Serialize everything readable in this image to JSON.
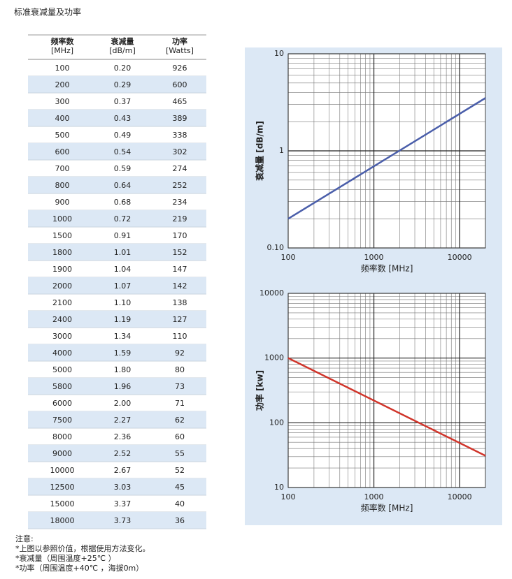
{
  "title": "标准衰减量及功率",
  "table": {
    "headers": [
      [
        "频率数",
        "[MHz]"
      ],
      [
        "衰减量",
        "[dB/m]"
      ],
      [
        "功率",
        "[Watts]"
      ]
    ],
    "rows": [
      [
        "100",
        "0.20",
        "926"
      ],
      [
        "200",
        "0.29",
        "600"
      ],
      [
        "300",
        "0.37",
        "465"
      ],
      [
        "400",
        "0.43",
        "389"
      ],
      [
        "500",
        "0.49",
        "338"
      ],
      [
        "600",
        "0.54",
        "302"
      ],
      [
        "700",
        "0.59",
        "274"
      ],
      [
        "800",
        "0.64",
        "252"
      ],
      [
        "900",
        "0.68",
        "234"
      ],
      [
        "1000",
        "0.72",
        "219"
      ],
      [
        "1500",
        "0.91",
        "170"
      ],
      [
        "1800",
        "1.01",
        "152"
      ],
      [
        "1900",
        "1.04",
        "147"
      ],
      [
        "2000",
        "1.07",
        "142"
      ],
      [
        "2100",
        "1.10",
        "138"
      ],
      [
        "2400",
        "1.19",
        "127"
      ],
      [
        "3000",
        "1.34",
        "110"
      ],
      [
        "4000",
        "1.59",
        "92"
      ],
      [
        "5000",
        "1.80",
        "80"
      ],
      [
        "5800",
        "1.96",
        "73"
      ],
      [
        "6000",
        "2.00",
        "71"
      ],
      [
        "7500",
        "2.27",
        "62"
      ],
      [
        "8000",
        "2.36",
        "60"
      ],
      [
        "9000",
        "2.52",
        "55"
      ],
      [
        "10000",
        "2.67",
        "52"
      ],
      [
        "12500",
        "3.03",
        "45"
      ],
      [
        "15000",
        "3.37",
        "40"
      ],
      [
        "18000",
        "3.73",
        "36"
      ]
    ]
  },
  "chart_data": [
    {
      "type": "line",
      "xlabel": "频率数 [MHz]",
      "ylabel": "衰减量 [dB/m]",
      "ylabel_color": "#3a56a8",
      "x": [
        100,
        20000
      ],
      "values": [
        0.2,
        3.5
      ],
      "color": "#4a5eaa",
      "xlim": [
        100,
        20000
      ],
      "ylim": [
        0.1,
        10
      ],
      "xticks": [
        100,
        1000,
        10000
      ],
      "yticks": [
        {
          "value": 0.1,
          "label": "0.10"
        },
        1,
        10
      ],
      "log_x": true,
      "log_y": true,
      "grid": true
    },
    {
      "type": "line",
      "xlabel": "频率数 [MHz]",
      "ylabel": "功率 [kw]",
      "ylabel_color": "#d03a2a",
      "x": [
        100,
        20000
      ],
      "values": [
        1000,
        31
      ],
      "color": "#d0342a",
      "xlim": [
        100,
        20000
      ],
      "ylim": [
        10,
        10000
      ],
      "xticks": [
        100,
        1000,
        10000
      ],
      "yticks": [
        10,
        100,
        1000,
        10000
      ],
      "log_x": true,
      "log_y": true,
      "grid": true
    }
  ],
  "notes": [
    "注意:",
    "*上图以参照价值，根据使用方法变化。",
    "*衰减量（周围温度+25℃ ）",
    "*功率（周围温度+40℃ ，海拔0m）"
  ]
}
